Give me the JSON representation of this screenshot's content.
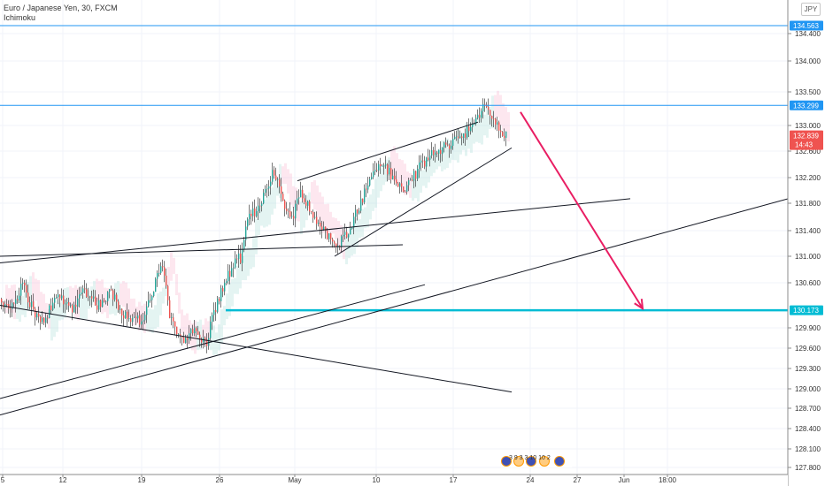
{
  "header": {
    "symbol_line": "Euro / Japanese Yen, 30, FXCM",
    "indicator": "Ichimoku",
    "currency_button": "JPY"
  },
  "colors": {
    "candle_up": "#26a69a",
    "candle_down": "#ef5350",
    "hline": "#2196f3",
    "target_line": "#00bcd4",
    "arrow": "#e91e63",
    "trendline": "#131722",
    "last_price_bg": "#ef5350",
    "blue_tag_bg": "#2196f3",
    "cloud_bull": "#b2dfdb",
    "cloud_bear": "#f8bbd0"
  },
  "chart_data": {
    "type": "line",
    "ylim": [
      127.75,
      135.0
    ],
    "xlim": [
      0,
      932
    ],
    "y_ticks": [
      127.8,
      128.1,
      128.4,
      128.7,
      129.0,
      129.3,
      129.6,
      129.9,
      130.6,
      131.0,
      131.4,
      131.8,
      132.2,
      132.6,
      133.0,
      133.5,
      134.0,
      134.4
    ],
    "x_ticks": [
      {
        "label": "5",
        "x": 3
      },
      {
        "label": "12",
        "x": 71
      },
      {
        "label": "19",
        "x": 160
      },
      {
        "label": "26",
        "x": 248
      },
      {
        "label": "May",
        "x": 333
      },
      {
        "label": "10",
        "x": 425
      },
      {
        "label": "17",
        "x": 512
      },
      {
        "label": "24",
        "x": 599
      },
      {
        "label": "27",
        "x": 652
      },
      {
        "label": "Jun",
        "x": 705
      },
      {
        "label": "18:00",
        "x": 754
      }
    ],
    "price_path": [
      [
        0,
        130.35
      ],
      [
        10,
        130.2
      ],
      [
        25,
        130.55
      ],
      [
        45,
        129.95
      ],
      [
        65,
        130.4
      ],
      [
        80,
        130.2
      ],
      [
        95,
        130.5
      ],
      [
        110,
        130.25
      ],
      [
        125,
        130.45
      ],
      [
        140,
        130.1
      ],
      [
        160,
        130.0
      ],
      [
        170,
        130.35
      ],
      [
        182,
        130.95
      ],
      [
        192,
        130.0
      ],
      [
        205,
        129.75
      ],
      [
        220,
        129.85
      ],
      [
        232,
        129.65
      ],
      [
        242,
        130.2
      ],
      [
        252,
        130.55
      ],
      [
        262,
        130.85
      ],
      [
        272,
        131.0
      ],
      [
        280,
        131.6
      ],
      [
        290,
        131.7
      ],
      [
        300,
        132.05
      ],
      [
        308,
        132.3
      ],
      [
        318,
        131.9
      ],
      [
        328,
        131.55
      ],
      [
        340,
        132.0
      ],
      [
        352,
        131.6
      ],
      [
        365,
        131.45
      ],
      [
        378,
        131.1
      ],
      [
        392,
        131.4
      ],
      [
        405,
        131.75
      ],
      [
        418,
        132.2
      ],
      [
        430,
        132.45
      ],
      [
        442,
        132.2
      ],
      [
        455,
        132.0
      ],
      [
        468,
        132.25
      ],
      [
        482,
        132.5
      ],
      [
        496,
        132.6
      ],
      [
        510,
        132.75
      ],
      [
        525,
        132.9
      ],
      [
        538,
        133.05
      ],
      [
        548,
        133.35
      ],
      [
        556,
        133.1
      ],
      [
        562,
        132.95
      ],
      [
        570,
        132.84
      ]
    ],
    "horizontal_levels": [
      {
        "price": 134.563,
        "label": "134.563",
        "style": "thin"
      },
      {
        "price": 133.299,
        "label": "133.299",
        "style": "thin"
      },
      {
        "price": 130.173,
        "label": "130.173",
        "style": "target"
      }
    ],
    "last_price": {
      "value": 132.839,
      "label": "132.839",
      "countdown": "14:43"
    },
    "trendlines": [
      [
        [
          0,
          131.0
        ],
        [
          455,
          131.18
        ]
      ],
      [
        [
          0,
          130.9
        ],
        [
          712,
          131.87
        ]
      ],
      [
        [
          0,
          130.25
        ],
        [
          578,
          128.95
        ]
      ],
      [
        [
          0,
          128.85
        ],
        [
          480,
          130.57
        ]
      ],
      [
        [
          0,
          128.6
        ],
        [
          890,
          131.87
        ]
      ],
      [
        [
          336,
          132.15
        ],
        [
          540,
          133.05
        ]
      ],
      [
        [
          378,
          131.0
        ],
        [
          578,
          132.65
        ]
      ]
    ],
    "forecast_arrow": [
      [
        588,
        133.2
      ],
      [
        726,
        130.2
      ]
    ]
  },
  "events": {
    "text": "3 9 3 3 10 10 2"
  }
}
